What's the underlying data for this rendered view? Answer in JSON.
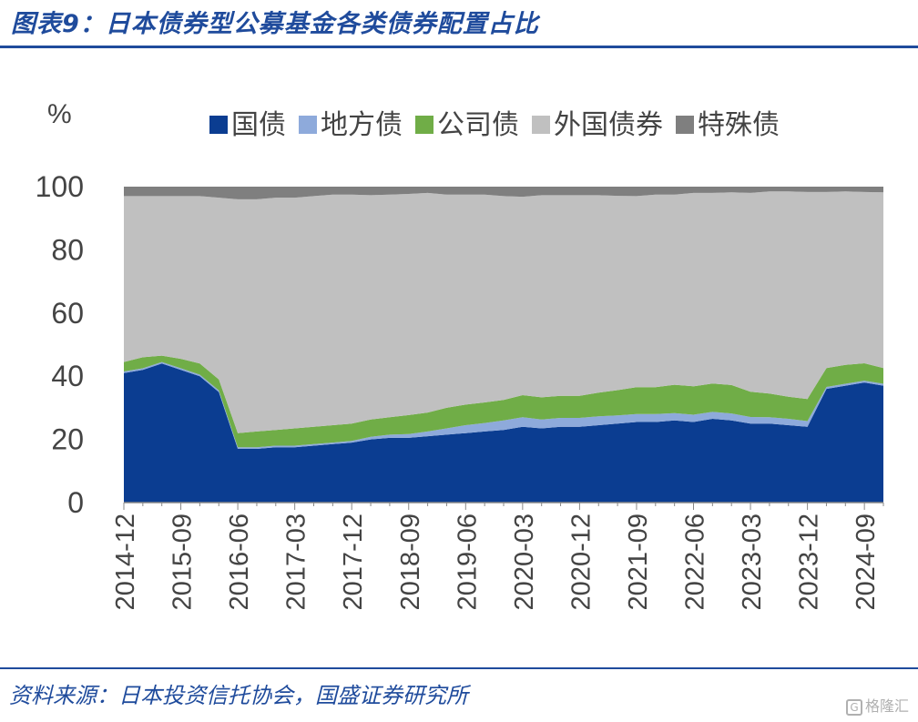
{
  "header": {
    "title": "图表9：日本债券型公募基金各类债券配置占比"
  },
  "footer": {
    "source": "资料来源：日本投资信托协会，国盛证券研究所",
    "watermark": "格隆汇"
  },
  "chart_data": {
    "type": "area",
    "stacked": true,
    "ylabel": "%",
    "ylim": [
      0,
      100
    ],
    "yticks": [
      0,
      20,
      40,
      60,
      80,
      100
    ],
    "xtick_labels": [
      "2014-12",
      "2015-09",
      "2016-06",
      "2017-03",
      "2017-12",
      "2018-09",
      "2019-06",
      "2020-03",
      "2020-12",
      "2021-09",
      "2022-06",
      "2023-03",
      "2023-12",
      "2024-09"
    ],
    "legend": "top",
    "x": [
      "2014-12",
      "2015-03",
      "2015-06",
      "2015-09",
      "2015-12",
      "2016-03",
      "2016-06",
      "2016-09",
      "2016-12",
      "2017-03",
      "2017-06",
      "2017-09",
      "2017-12",
      "2018-03",
      "2018-06",
      "2018-09",
      "2018-12",
      "2019-03",
      "2019-06",
      "2019-09",
      "2019-12",
      "2020-03",
      "2020-06",
      "2020-09",
      "2020-12",
      "2021-03",
      "2021-06",
      "2021-09",
      "2021-12",
      "2022-03",
      "2022-06",
      "2022-09",
      "2022-12",
      "2023-03",
      "2023-06",
      "2023-09",
      "2023-12",
      "2024-03",
      "2024-06",
      "2024-09",
      "2024-12"
    ],
    "series": [
      {
        "name": "国债",
        "color": "#0b3d91",
        "values": [
          41,
          42,
          44,
          42,
          40,
          35,
          17,
          17,
          17.5,
          17.5,
          18,
          18.5,
          19,
          20,
          20.5,
          20.5,
          21,
          21.5,
          22,
          22.5,
          23,
          24,
          23.5,
          24,
          24,
          24.5,
          25,
          25.5,
          25.5,
          26,
          25.5,
          26.5,
          26,
          25,
          25,
          24.5,
          24,
          36,
          37,
          38,
          37
        ]
      },
      {
        "name": "地方债",
        "color": "#8eaadb",
        "values": [
          0.5,
          0.5,
          0.5,
          0.5,
          0.5,
          0.5,
          0.5,
          0.5,
          0.5,
          0.5,
          0.5,
          0.5,
          0.5,
          0.8,
          1,
          1.2,
          1.5,
          2,
          2.5,
          2.7,
          3,
          3,
          2.8,
          2.8,
          2.8,
          2.8,
          2.6,
          2.5,
          2.5,
          2.3,
          2.3,
          2.2,
          2.2,
          2.1,
          2,
          2,
          1.8,
          0.6,
          0.6,
          0.6,
          0.6
        ]
      },
      {
        "name": "公司债",
        "color": "#70ad47",
        "values": [
          3,
          3.5,
          2,
          3,
          3.5,
          3.5,
          4.5,
          5,
          5,
          5.5,
          5.5,
          5.5,
          5.5,
          5.5,
          5.5,
          6,
          6,
          6.5,
          6.5,
          6.5,
          6.5,
          7,
          7,
          7,
          7,
          7.5,
          8,
          8.5,
          8.5,
          9,
          9,
          9,
          9,
          8,
          7.5,
          7,
          7,
          6,
          6,
          5.5,
          5
        ]
      },
      {
        "name": "外国债券",
        "color": "#c0c0c0",
        "values": [
          52.5,
          51,
          50.5,
          51.5,
          53,
          57.5,
          74,
          73.5,
          73.5,
          73,
          73,
          73,
          72.5,
          71,
          70.5,
          70,
          69.5,
          67.5,
          66.5,
          65.8,
          64.5,
          62.8,
          64,
          63.5,
          63.5,
          62.5,
          61.5,
          60.5,
          61,
          60.2,
          61.2,
          60.3,
          61,
          62.9,
          64,
          65,
          65.5,
          55.7,
          54.9,
          54.2,
          55.6
        ]
      },
      {
        "name": "特殊债",
        "color": "#7f7f7f",
        "values": [
          3,
          3,
          3,
          3,
          3,
          3.5,
          4,
          4,
          3.5,
          3.5,
          3,
          2.5,
          2.5,
          2.7,
          2.5,
          2.3,
          2,
          2.5,
          2.5,
          2.5,
          3,
          3.2,
          2.7,
          2.7,
          2.7,
          2.7,
          2.9,
          3,
          2.5,
          2.5,
          2,
          2,
          1.8,
          2,
          1.5,
          1.5,
          1.7,
          1.7,
          1.5,
          1.7,
          1.8
        ]
      }
    ]
  }
}
